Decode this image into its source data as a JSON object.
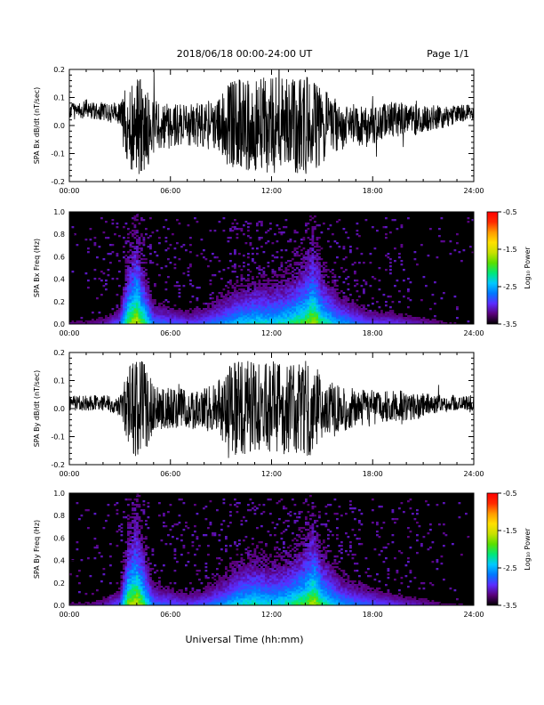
{
  "header": {
    "title": "2018/06/18  00:00-24:00 UT",
    "page_label": "Page 1/1"
  },
  "footer": {
    "xlabel": "Universal Time (hh:mm)"
  },
  "colors": {
    "trace": "#000000",
    "spectrogram_background": "#000000",
    "colorbar_stops": [
      "#000000",
      "#5a007a",
      "#5b2cff",
      "#0077ff",
      "#00c8ff",
      "#00e878",
      "#5adf00",
      "#c8e000",
      "#ffe000",
      "#ff9a00",
      "#ff2a00",
      "#ff0000"
    ]
  },
  "chart_data": [
    {
      "type": "line",
      "panel": "bx_waveform",
      "ylabel": "SPA Bx dB/dt (nT/sec)",
      "xlim": [
        0,
        24
      ],
      "ylim": [
        -0.2,
        0.2
      ],
      "x_ticks": [
        "00:00",
        "06:00",
        "12:00",
        "18:00",
        "24:00"
      ],
      "y_ticks": [
        "0.2",
        "0.1",
        "0.0",
        "-0.1",
        "-0.2"
      ],
      "y_tick_values": [
        0.2,
        0.1,
        0.0,
        -0.1,
        -0.2
      ],
      "envelope": {
        "x_hours": [
          0,
          1,
          2,
          3,
          3.5,
          4,
          4.5,
          5,
          6,
          7,
          8,
          9,
          9.5,
          10,
          11,
          12,
          13,
          14,
          14.5,
          15,
          16,
          17,
          18,
          19,
          20,
          21,
          22,
          23,
          24
        ],
        "amplitude": [
          0.06,
          0.06,
          0.06,
          0.07,
          0.3,
          0.32,
          0.3,
          0.18,
          0.14,
          0.14,
          0.15,
          0.2,
          0.3,
          0.3,
          0.3,
          0.32,
          0.3,
          0.32,
          0.3,
          0.25,
          0.16,
          0.14,
          0.12,
          0.12,
          0.11,
          0.1,
          0.08,
          0.06,
          0.05
        ],
        "baseline": [
          0.05,
          0.06,
          0.05,
          0.04,
          0.0,
          0.0,
          0.0,
          0.0,
          0.0,
          0.0,
          0.0,
          0.0,
          0.0,
          0.0,
          0.0,
          0.0,
          0.0,
          0.0,
          0.0,
          0.0,
          0.0,
          0.0,
          0.0,
          0.02,
          0.02,
          0.02,
          0.03,
          0.04,
          0.05
        ]
      }
    },
    {
      "type": "heatmap",
      "panel": "bx_spectrogram",
      "ylabel": "SPA Bx Freq (Hz)",
      "xlim": [
        0,
        24
      ],
      "ylim": [
        0,
        1.0
      ],
      "x_ticks": [
        "00:00",
        "06:00",
        "12:00",
        "18:00",
        "24:00"
      ],
      "y_ticks": [
        "1.0",
        "0.8",
        "0.6",
        "0.4",
        "0.2",
        "0.0"
      ],
      "y_tick_values": [
        1.0,
        0.8,
        0.6,
        0.4,
        0.2,
        0.0
      ],
      "colorbar": {
        "label": "Log₁₀ Power",
        "range": [
          -3.5,
          -0.5
        ],
        "ticks": [
          "-0.5",
          "-1.5",
          "-2.5",
          "-3.5"
        ],
        "tick_values": [
          -0.5,
          -1.5,
          -2.5,
          -3.5
        ]
      },
      "activity": {
        "x_hours": [
          0,
          1,
          2,
          3,
          3.5,
          4,
          4.5,
          5,
          6,
          7,
          8,
          9,
          10,
          11,
          12,
          13,
          14,
          14.5,
          15,
          16,
          17,
          18,
          19,
          20,
          21,
          22,
          23,
          24
        ],
        "level": [
          0.15,
          0.15,
          0.2,
          0.35,
          0.8,
          1.0,
          0.7,
          0.4,
          0.35,
          0.3,
          0.35,
          0.45,
          0.55,
          0.6,
          0.6,
          0.65,
          0.8,
          0.95,
          0.7,
          0.5,
          0.4,
          0.3,
          0.3,
          0.25,
          0.2,
          0.15,
          0.12,
          0.1
        ]
      }
    },
    {
      "type": "line",
      "panel": "by_waveform",
      "ylabel": "SPA By dB/dt (nT/sec)",
      "xlim": [
        0,
        24
      ],
      "ylim": [
        -0.2,
        0.2
      ],
      "x_ticks": [
        "00:00",
        "06:00",
        "12:00",
        "18:00",
        "24:00"
      ],
      "y_ticks": [
        "0.2",
        "0.1",
        "0.0",
        "-0.1",
        "-0.2"
      ],
      "y_tick_values": [
        0.2,
        0.1,
        0.0,
        -0.1,
        -0.2
      ],
      "envelope": {
        "x_hours": [
          0,
          1,
          2,
          3,
          3.5,
          4,
          4.5,
          5,
          6,
          7,
          8,
          9,
          9.5,
          10,
          11,
          12,
          13,
          14,
          14.5,
          15,
          16,
          17,
          18,
          19,
          20,
          21,
          22,
          23,
          24
        ],
        "amplitude": [
          0.05,
          0.05,
          0.05,
          0.06,
          0.28,
          0.32,
          0.3,
          0.16,
          0.13,
          0.13,
          0.14,
          0.2,
          0.28,
          0.32,
          0.32,
          0.32,
          0.3,
          0.32,
          0.3,
          0.2,
          0.15,
          0.13,
          0.12,
          0.1,
          0.1,
          0.08,
          0.06,
          0.05,
          0.05
        ],
        "baseline": [
          0.02,
          0.02,
          0.02,
          0.01,
          0.0,
          0.0,
          0.0,
          0.0,
          0.0,
          0.0,
          0.0,
          0.0,
          0.0,
          0.0,
          0.0,
          0.0,
          0.0,
          0.0,
          0.0,
          0.0,
          0.0,
          0.0,
          0.0,
          0.01,
          0.01,
          0.01,
          0.02,
          0.02,
          0.02
        ]
      }
    },
    {
      "type": "heatmap",
      "panel": "by_spectrogram",
      "ylabel": "SPA By Freq (Hz)",
      "xlim": [
        0,
        24
      ],
      "ylim": [
        0,
        1.0
      ],
      "x_ticks": [
        "00:00",
        "06:00",
        "12:00",
        "18:00",
        "24:00"
      ],
      "y_ticks": [
        "1.0",
        "0.8",
        "0.6",
        "0.4",
        "0.2",
        "0.0"
      ],
      "y_tick_values": [
        1.0,
        0.8,
        0.6,
        0.4,
        0.2,
        0.0
      ],
      "colorbar": {
        "label": "Log₁₀ Power",
        "range": [
          -3.5,
          -0.5
        ],
        "ticks": [
          "-0.5",
          "-1.5",
          "-2.5",
          "-3.5"
        ],
        "tick_values": [
          -0.5,
          -1.5,
          -2.5,
          -3.5
        ]
      },
      "activity": {
        "x_hours": [
          0,
          1,
          2,
          3,
          3.5,
          4,
          4.5,
          5,
          6,
          7,
          8,
          9,
          10,
          11,
          12,
          13,
          14,
          14.5,
          15,
          16,
          17,
          18,
          19,
          20,
          21,
          22,
          23,
          24
        ],
        "level": [
          0.15,
          0.15,
          0.2,
          0.35,
          0.85,
          1.0,
          0.7,
          0.4,
          0.35,
          0.3,
          0.35,
          0.45,
          0.6,
          0.65,
          0.6,
          0.65,
          0.8,
          0.95,
          0.7,
          0.5,
          0.4,
          0.35,
          0.3,
          0.25,
          0.2,
          0.15,
          0.12,
          0.1
        ]
      }
    }
  ]
}
